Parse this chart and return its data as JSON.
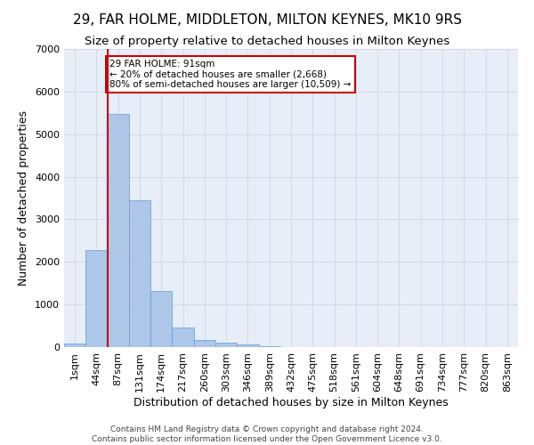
{
  "title": "29, FAR HOLME, MIDDLETON, MILTON KEYNES, MK10 9RS",
  "subtitle": "Size of property relative to detached houses in Milton Keynes",
  "xlabel": "Distribution of detached houses by size in Milton Keynes",
  "ylabel": "Number of detached properties",
  "footer_line1": "Contains HM Land Registry data © Crown copyright and database right 2024.",
  "footer_line2": "Contains public sector information licensed under the Open Government Licence v3.0.",
  "bar_labels": [
    "1sqm",
    "44sqm",
    "87sqm",
    "131sqm",
    "174sqm",
    "217sqm",
    "260sqm",
    "303sqm",
    "346sqm",
    "389sqm",
    "432sqm",
    "475sqm",
    "518sqm",
    "561sqm",
    "604sqm",
    "648sqm",
    "691sqm",
    "734sqm",
    "777sqm",
    "820sqm",
    "863sqm"
  ],
  "bar_values": [
    75,
    2280,
    5480,
    3450,
    1320,
    470,
    160,
    100,
    60,
    30,
    0,
    0,
    0,
    0,
    0,
    0,
    0,
    0,
    0,
    0,
    0
  ],
  "bar_color": "#aec6e8",
  "bar_edgecolor": "#5a9fd4",
  "vline_index": 2,
  "vline_color": "#cc0000",
  "annotation_text": "29 FAR HOLME: 91sqm\n← 20% of detached houses are smaller (2,668)\n80% of semi-detached houses are larger (10,509) →",
  "annotation_box_color": "white",
  "annotation_box_edgecolor": "#cc0000",
  "ylim": [
    0,
    7000
  ],
  "yticks": [
    0,
    1000,
    2000,
    3000,
    4000,
    5000,
    6000,
    7000
  ],
  "grid_color": "#d0d8e8",
  "bg_color": "#e8eef8",
  "title_fontsize": 11,
  "subtitle_fontsize": 9.5,
  "xlabel_fontsize": 9,
  "ylabel_fontsize": 9,
  "tick_fontsize": 8,
  "footer_fontsize": 6.5
}
